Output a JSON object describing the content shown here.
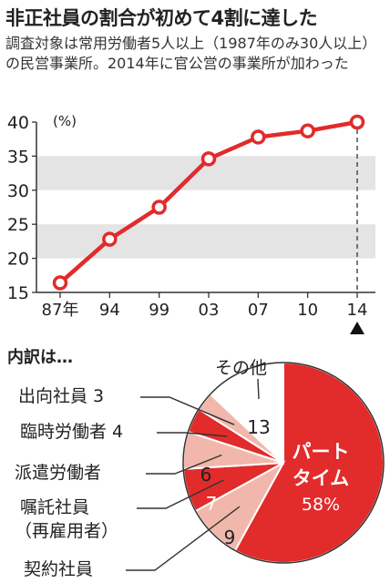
{
  "header": {
    "title": "非正社員の割合が初めて4割に達した",
    "subtitle": "調査対象は常用労働者5人以上（1987年のみ30人以上）の民営事業所。2014年に官公営の事業所が加わった"
  },
  "colors": {
    "accent": "#e22b2b",
    "light": "#f2b7ac",
    "band": "#e4e4e4",
    "text": "#222222"
  },
  "chart_data": [
    {
      "type": "line",
      "title": "",
      "xlabel": "",
      "ylabel": "(%)",
      "x": [
        "87年",
        "94",
        "99",
        "03",
        "07",
        "10",
        "14"
      ],
      "series": [
        {
          "values": [
            16.4,
            22.8,
            27.5,
            34.6,
            37.8,
            38.7,
            40.0
          ]
        }
      ],
      "ylim": [
        15,
        40
      ],
      "yticks": [
        15,
        20,
        25,
        30,
        35,
        40
      ],
      "grid": "alternating-bands",
      "highlight": "14"
    },
    {
      "type": "pie",
      "title": "内訳は…",
      "slices": [
        {
          "label": "パート タイム",
          "value": 58,
          "value_label": "58%",
          "tone": "accent"
        },
        {
          "label": "契約社員",
          "value": 9,
          "value_label": "9",
          "tone": "light"
        },
        {
          "label": "嘱託社員（再雇用者）",
          "value": 7,
          "value_label": "7",
          "tone": "accent"
        },
        {
          "label": "派遣労働者",
          "value": 6,
          "value_label": "6",
          "tone": "light"
        },
        {
          "label": "臨時労働者",
          "value": 4,
          "value_label": "4",
          "tone": "accent"
        },
        {
          "label": "出向社員",
          "value": 3,
          "value_label": "3",
          "tone": "light"
        },
        {
          "label": "その他",
          "value": 13,
          "value_label": "13",
          "tone": "white"
        }
      ]
    }
  ]
}
